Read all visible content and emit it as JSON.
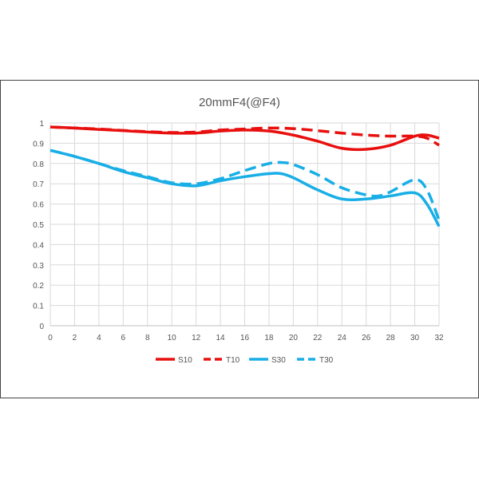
{
  "chart_data": {
    "type": "line",
    "title": "20mmF4(@F4)",
    "xlabel": "",
    "ylabel": "",
    "xlim": [
      0,
      32
    ],
    "ylim": [
      0,
      1
    ],
    "xticks": [
      "0",
      "2",
      "4",
      "6",
      "8",
      "10",
      "12",
      "14",
      "16",
      "18",
      "20",
      "22",
      "24",
      "26",
      "28",
      "30",
      "32"
    ],
    "yticks": [
      "0",
      "0.1",
      "0.2",
      "0.3",
      "0.4",
      "0.5",
      "0.6",
      "0.7",
      "0.8",
      "0.9",
      "1"
    ],
    "grid": true,
    "legend_position": "bottom",
    "colors": {
      "red": "#e8100f",
      "blue": "#18aee6"
    },
    "series": [
      {
        "name": "S10",
        "color": "#e8100f",
        "dash": false,
        "x": [
          0,
          2,
          4,
          6,
          8,
          10,
          12,
          14,
          16,
          18,
          20,
          22,
          24,
          26,
          28,
          30,
          31,
          32
        ],
        "y": [
          0.98,
          0.975,
          0.968,
          0.962,
          0.955,
          0.95,
          0.95,
          0.96,
          0.965,
          0.96,
          0.94,
          0.91,
          0.875,
          0.87,
          0.89,
          0.935,
          0.94,
          0.925
        ]
      },
      {
        "name": "T10",
        "color": "#e8100f",
        "dash": true,
        "x": [
          0,
          2,
          4,
          6,
          8,
          10,
          12,
          14,
          16,
          18,
          20,
          22,
          24,
          26,
          28,
          30,
          31,
          32
        ],
        "y": [
          0.98,
          0.975,
          0.97,
          0.963,
          0.957,
          0.953,
          0.955,
          0.965,
          0.97,
          0.975,
          0.972,
          0.962,
          0.95,
          0.94,
          0.935,
          0.935,
          0.925,
          0.89
        ]
      },
      {
        "name": "S30",
        "color": "#18aee6",
        "dash": false,
        "x": [
          0,
          2,
          4,
          6,
          8,
          10,
          12,
          14,
          16,
          18,
          19,
          20,
          22,
          24,
          26,
          28,
          30,
          31,
          32
        ],
        "y": [
          0.865,
          0.835,
          0.8,
          0.76,
          0.73,
          0.7,
          0.69,
          0.715,
          0.735,
          0.75,
          0.75,
          0.73,
          0.67,
          0.625,
          0.625,
          0.64,
          0.655,
          0.6,
          0.49
        ]
      },
      {
        "name": "T30",
        "color": "#18aee6",
        "dash": true,
        "x": [
          0,
          2,
          4,
          6,
          8,
          10,
          12,
          14,
          16,
          18,
          19,
          20,
          22,
          24,
          26,
          27,
          28,
          30,
          31,
          32
        ],
        "y": [
          0.865,
          0.835,
          0.8,
          0.765,
          0.735,
          0.705,
          0.7,
          0.725,
          0.765,
          0.8,
          0.805,
          0.795,
          0.745,
          0.68,
          0.645,
          0.64,
          0.66,
          0.72,
          0.67,
          0.52
        ]
      }
    ]
  }
}
